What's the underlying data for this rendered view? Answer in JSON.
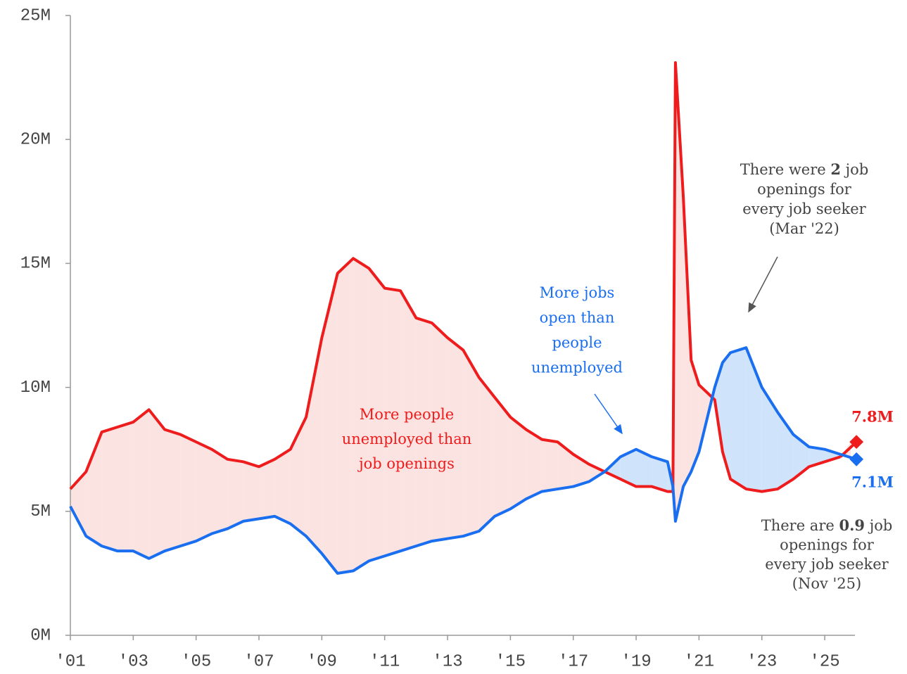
{
  "chart_data": {
    "type": "line",
    "x": [
      2001.0,
      2001.5,
      2002.0,
      2002.5,
      2003.0,
      2003.5,
      2004.0,
      2004.5,
      2005.0,
      2005.5,
      2006.0,
      2006.5,
      2007.0,
      2007.5,
      2008.0,
      2008.5,
      2009.0,
      2009.5,
      2010.0,
      2010.5,
      2011.0,
      2011.5,
      2012.0,
      2012.5,
      2013.0,
      2013.5,
      2014.0,
      2014.5,
      2015.0,
      2015.5,
      2016.0,
      2016.5,
      2017.0,
      2017.5,
      2018.0,
      2018.5,
      2019.0,
      2019.5,
      2020.0,
      2020.17,
      2020.25,
      2020.5,
      2020.75,
      2021.0,
      2021.5,
      2021.75,
      2022.0,
      2022.5,
      2023.0,
      2023.5,
      2024.0,
      2024.5,
      2025.0,
      2025.5,
      2025.83
    ],
    "series": [
      {
        "color": "#ee1c1c",
        "last_label": "7.8M",
        "values": [
          5.9,
          6.6,
          8.2,
          8.4,
          8.6,
          9.1,
          8.3,
          8.1,
          7.8,
          7.5,
          7.1,
          7.0,
          6.8,
          7.1,
          7.5,
          8.8,
          12.0,
          14.6,
          15.2,
          14.8,
          14.0,
          13.9,
          12.8,
          12.6,
          12.0,
          11.5,
          10.4,
          9.6,
          8.8,
          8.3,
          7.9,
          7.8,
          7.3,
          6.9,
          6.6,
          6.3,
          6.0,
          6.0,
          5.8,
          5.8,
          23.1,
          17.7,
          11.1,
          10.1,
          9.5,
          7.4,
          6.3,
          5.9,
          5.8,
          5.9,
          6.3,
          6.8,
          7.0,
          7.2,
          7.8
        ]
      },
      {
        "color": "#1a6ef0",
        "last_label": "7.1M",
        "values": [
          5.2,
          4.0,
          3.6,
          3.4,
          3.4,
          3.1,
          3.4,
          3.6,
          3.8,
          4.1,
          4.3,
          4.6,
          4.7,
          4.8,
          4.5,
          4.0,
          3.3,
          2.5,
          2.6,
          3.0,
          3.2,
          3.4,
          3.6,
          3.8,
          3.9,
          4.0,
          4.2,
          4.8,
          5.1,
          5.5,
          5.8,
          5.9,
          6.0,
          6.2,
          6.6,
          7.2,
          7.5,
          7.2,
          7.0,
          6.0,
          4.6,
          6.0,
          6.6,
          7.4,
          10.0,
          11.0,
          11.4,
          11.6,
          10.0,
          9.0,
          8.1,
          7.6,
          7.5,
          7.3,
          7.1
        ]
      }
    ],
    "xlim": [
      2001,
      2025.83
    ],
    "xticks": [
      {
        "value": 2001,
        "label": "'01"
      },
      {
        "value": 2003,
        "label": "'03"
      },
      {
        "value": 2005,
        "label": "'05"
      },
      {
        "value": 2007,
        "label": "'07"
      },
      {
        "value": 2009,
        "label": "'09"
      },
      {
        "value": 2011,
        "label": "'11"
      },
      {
        "value": 2013,
        "label": "'13"
      },
      {
        "value": 2015,
        "label": "'15"
      },
      {
        "value": 2017,
        "label": "'17"
      },
      {
        "value": 2019,
        "label": "'19"
      },
      {
        "value": 2021,
        "label": "'21"
      },
      {
        "value": 2023,
        "label": "'23"
      },
      {
        "value": 2025,
        "label": "'25"
      }
    ],
    "ylim": [
      0,
      25
    ],
    "yticks": [
      {
        "value": 0,
        "label": "0M"
      },
      {
        "value": 5,
        "label": "5M"
      },
      {
        "value": 10,
        "label": "10M"
      },
      {
        "value": 15,
        "label": "15M"
      },
      {
        "value": 20,
        "label": "20M"
      },
      {
        "value": 25,
        "label": "25M"
      }
    ],
    "grid": false,
    "annotations": [
      {
        "color": "#ee1c1c",
        "lines": [
          [
            "More people"
          ],
          [
            "unemployed than"
          ],
          [
            "job openings"
          ]
        ]
      },
      {
        "color": "#1a6ef0",
        "lines": [
          [
            "More jobs"
          ],
          [
            "open than"
          ],
          [
            "people"
          ],
          [
            "unemployed"
          ]
        ]
      },
      {
        "color": "#444444",
        "lines": [
          [
            "There were ",
            "2",
            " job"
          ],
          [
            "openings for"
          ],
          [
            "every job seeker"
          ],
          [
            "(Mar '22)"
          ]
        ]
      },
      {
        "color": "#444444",
        "lines": [
          [
            "There are ",
            "0.9",
            " job"
          ],
          [
            "openings for"
          ],
          [
            "every job seeker"
          ],
          [
            "(Nov '25)"
          ]
        ]
      }
    ]
  }
}
